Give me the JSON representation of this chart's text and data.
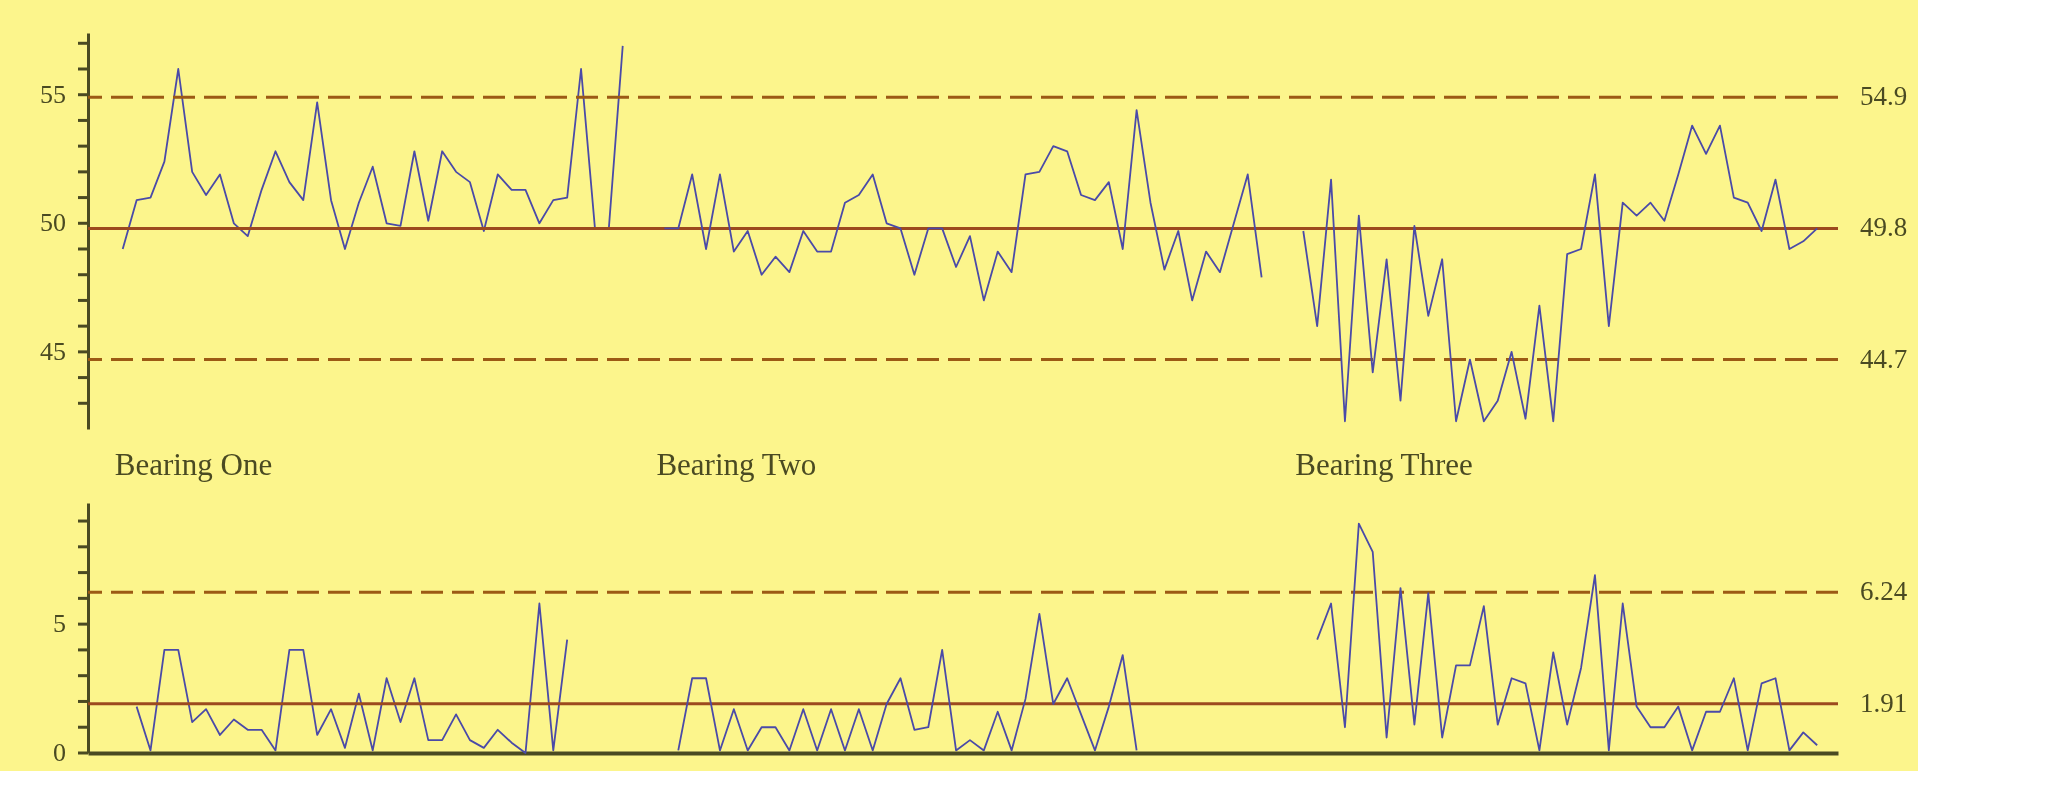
{
  "chart_data": [
    {
      "type": "line",
      "tick_labels": "y",
      "line_style": "solid",
      "categories": [
        null,
        null,
        null,
        null,
        null,
        null,
        null,
        null,
        null,
        null,
        null,
        null,
        null,
        null,
        null,
        null,
        null,
        null,
        null,
        null,
        null,
        null,
        null,
        null,
        null,
        null,
        null,
        null,
        null,
        null,
        null,
        null,
        null,
        null,
        null,
        null,
        null,
        null,
        null,
        null,
        null,
        null,
        null,
        null,
        null,
        null,
        null,
        null,
        null,
        null,
        null,
        null,
        null,
        null,
        null,
        null,
        null,
        null,
        null,
        null,
        null,
        null,
        null,
        null,
        null,
        null,
        null,
        null,
        null,
        null,
        null,
        null,
        null,
        null,
        null,
        null,
        null,
        null,
        null,
        null,
        null,
        null,
        null,
        null,
        null,
        null,
        null,
        null,
        null,
        null,
        null,
        null,
        null,
        null,
        null,
        null,
        null,
        null,
        null,
        null,
        null,
        null,
        null,
        null,
        null,
        null,
        null,
        null,
        null,
        null,
        null,
        null,
        null,
        null,
        null,
        null,
        null,
        null,
        null,
        null,
        null,
        null,
        null,
        null,
        null,
        null
      ],
      "annotations": [
        "Bearing One",
        "Bearing Two",
        "Bearing Three"
      ],
      "ylim": [
        42,
        57.4
      ],
      "yticks": [
        {
          "value": 43,
          "label": null
        },
        {
          "value": 44,
          "label": null
        },
        45,
        {
          "value": 46,
          "label": null
        },
        {
          "value": 47,
          "label": null
        },
        {
          "value": 48,
          "label": null
        },
        {
          "value": 49,
          "label": null
        },
        50,
        {
          "value": 51,
          "label": null
        },
        {
          "value": 52,
          "label": null
        },
        {
          "value": 53,
          "label": null
        },
        {
          "value": 54,
          "label": null
        },
        55,
        {
          "value": 56,
          "label": null
        },
        {
          "value": 57,
          "label": null
        }
      ],
      "ref_lines": [
        {
          "axis": "y",
          "value": 54.9,
          "label": "54.9",
          "color": "#9c5a14",
          "line_style": "dashed"
        },
        {
          "axis": "y",
          "value": 49.8,
          "label": "49.8",
          "color": "#9c4a1e",
          "line_style": "solid"
        },
        {
          "axis": "y",
          "value": 44.7,
          "label": "44.7",
          "color": "#9c5a14",
          "line_style": "dashed"
        }
      ],
      "series": [
        {
          "color": "#4a4aa8",
          "values": [
            null,
            null,
            49.0,
            50.9,
            51.0,
            52.4,
            56.0,
            52.0,
            51.1,
            51.9,
            50.0,
            49.5,
            51.3,
            52.8,
            51.6,
            50.9,
            54.7,
            50.9,
            49.0,
            50.8,
            52.2,
            50.0,
            49.9,
            52.8,
            50.1,
            52.8,
            52.0,
            51.6,
            49.7,
            51.9,
            51.3,
            51.3,
            50.0,
            50.9,
            51.0,
            56.0,
            49.8,
            49.8,
            56.9,
            null,
            null,
            null,
            null,
            null,
            null,
            null,
            null,
            null,
            null,
            null,
            null,
            null,
            null,
            null,
            null,
            null,
            null,
            null,
            null,
            null,
            null,
            null,
            null,
            null,
            null,
            null,
            null,
            null,
            null,
            null,
            null,
            null,
            null,
            null,
            null,
            null,
            null,
            null,
            null,
            null,
            null,
            null,
            null,
            null,
            null,
            null,
            null,
            null,
            null,
            null,
            null,
            null,
            null,
            null,
            null,
            null,
            null,
            null,
            null,
            null,
            null,
            null,
            null,
            null,
            null,
            null,
            null,
            null,
            null,
            null,
            null,
            null,
            null,
            null,
            null,
            null,
            null,
            null,
            null,
            null,
            null,
            null,
            null,
            null,
            null,
            null
          ]
        },
        {
          "color": "#4a4aa8",
          "values": [
            null,
            null,
            null,
            null,
            null,
            null,
            null,
            null,
            null,
            null,
            null,
            null,
            null,
            null,
            null,
            null,
            null,
            null,
            null,
            null,
            null,
            null,
            null,
            null,
            null,
            null,
            null,
            null,
            null,
            null,
            null,
            null,
            null,
            null,
            null,
            null,
            null,
            null,
            null,
            null,
            null,
            49.8,
            49.8,
            51.9,
            49.0,
            51.9,
            48.9,
            49.7,
            48.0,
            48.7,
            48.1,
            49.7,
            48.9,
            48.9,
            50.8,
            51.1,
            51.9,
            50.0,
            49.8,
            48.0,
            49.8,
            49.8,
            48.3,
            49.5,
            47.0,
            48.9,
            48.1,
            51.9,
            52.0,
            53.0,
            52.8,
            51.1,
            50.9,
            51.6,
            49.0,
            54.4,
            50.8,
            48.2,
            49.7,
            47.0,
            48.9,
            48.1,
            50.0,
            51.9,
            47.9,
            null,
            null,
            null,
            null,
            null,
            null,
            null,
            null,
            null,
            null,
            null,
            null,
            null,
            null,
            null,
            null,
            null,
            null,
            null,
            null,
            null,
            null,
            null,
            null,
            null,
            null,
            null,
            null,
            null,
            null,
            null,
            null,
            null,
            null,
            null,
            null,
            null,
            null,
            null,
            null,
            null
          ]
        },
        {
          "color": "#4a4aa8",
          "values": [
            null,
            null,
            null,
            null,
            null,
            null,
            null,
            null,
            null,
            null,
            null,
            null,
            null,
            null,
            null,
            null,
            null,
            null,
            null,
            null,
            null,
            null,
            null,
            null,
            null,
            null,
            null,
            null,
            null,
            null,
            null,
            null,
            null,
            null,
            null,
            null,
            null,
            null,
            null,
            null,
            null,
            null,
            null,
            null,
            null,
            null,
            null,
            null,
            null,
            null,
            null,
            null,
            null,
            null,
            null,
            null,
            null,
            null,
            null,
            null,
            null,
            null,
            null,
            null,
            null,
            null,
            null,
            null,
            null,
            null,
            null,
            null,
            null,
            null,
            null,
            null,
            null,
            null,
            null,
            null,
            null,
            null,
            null,
            null,
            null,
            null,
            null,
            49.7,
            46.0,
            51.7,
            42.3,
            50.3,
            44.2,
            48.6,
            43.1,
            49.9,
            46.4,
            48.6,
            42.3,
            44.7,
            42.3,
            43.1,
            45.0,
            42.4,
            46.8,
            42.3,
            48.8,
            49.0,
            51.9,
            46.0,
            50.8,
            50.3,
            50.8,
            50.1,
            51.9,
            53.8,
            52.7,
            53.8,
            51.0,
            50.8,
            49.7,
            51.7,
            49.0,
            49.3,
            49.8,
            null
          ]
        }
      ]
    },
    {
      "type": "line",
      "tick_labels": "y",
      "line_style": "solid",
      "categories": [
        null,
        null,
        null,
        null,
        null,
        null,
        null,
        null,
        null,
        null,
        null,
        null,
        null,
        null,
        null,
        null,
        null,
        null,
        null,
        null,
        null,
        null,
        null,
        null,
        null,
        null,
        null,
        null,
        null,
        null,
        null,
        null,
        null,
        null,
        null,
        null,
        null,
        null,
        null,
        null,
        null,
        null,
        null,
        null,
        null,
        null,
        null,
        null,
        null,
        null,
        null,
        null,
        null,
        null,
        null,
        null,
        null,
        null,
        null,
        null,
        null,
        null,
        null,
        null,
        null,
        null,
        null,
        null,
        null,
        null,
        null,
        null,
        null,
        null,
        null,
        null,
        null,
        null,
        null,
        null,
        null,
        null,
        null,
        null,
        null,
        null,
        null,
        null,
        null,
        null,
        null,
        null,
        null,
        null,
        null,
        null,
        null,
        null,
        null,
        null,
        null,
        null,
        null,
        null,
        null,
        null,
        null,
        null,
        null,
        null,
        null,
        null,
        null,
        null,
        null,
        null,
        null,
        null,
        null,
        null,
        null,
        null,
        null,
        null,
        null,
        null
      ],
      "ylim": [
        0,
        9.7
      ],
      "yticks": [
        0,
        {
          "value": 1,
          "label": null
        },
        {
          "value": 2,
          "label": null
        },
        {
          "value": 3,
          "label": null
        },
        {
          "value": 4,
          "label": null
        },
        5,
        {
          "value": 6,
          "label": null
        },
        {
          "value": 7,
          "label": null
        },
        {
          "value": 8,
          "label": null
        },
        {
          "value": 9,
          "label": null
        }
      ],
      "ref_lines": [
        {
          "axis": "y",
          "value": 6.24,
          "label": "6.24",
          "color": "#9c5a14",
          "line_style": "dashed"
        },
        {
          "axis": "y",
          "value": 1.91,
          "label": "1.91",
          "color": "#9c4a1e",
          "line_style": "solid"
        }
      ],
      "series": [
        {
          "color": "#4a4aa8",
          "values": [
            null,
            null,
            null,
            1.8,
            0.1,
            4.0,
            4.0,
            1.2,
            1.7,
            0.7,
            1.3,
            0.9,
            0.9,
            0.1,
            4.0,
            4.0,
            0.7,
            1.7,
            0.2,
            2.3,
            0.1,
            2.9,
            1.2,
            2.9,
            0.5,
            0.5,
            1.5,
            0.5,
            0.2,
            0.9,
            0.4,
            0.0,
            5.8,
            0.1,
            4.4,
            null,
            null,
            null,
            null,
            null,
            null,
            null,
            null,
            null,
            null,
            null,
            null,
            null,
            null,
            null,
            null,
            null,
            null,
            null,
            null,
            null,
            null,
            null,
            null,
            null,
            null,
            null,
            null,
            null,
            null,
            null,
            null,
            null,
            null,
            null,
            null,
            null,
            null,
            null,
            null,
            null,
            null,
            null,
            null,
            null,
            null,
            null,
            null,
            null,
            null,
            null,
            null,
            null,
            null,
            null,
            null,
            null,
            null,
            null,
            null,
            null,
            null,
            null,
            null,
            null,
            null,
            null,
            null,
            null,
            null,
            null,
            null,
            null,
            null,
            null,
            null,
            null,
            null,
            null,
            null,
            null,
            null,
            null,
            null,
            null,
            null,
            null,
            null,
            null,
            null,
            null
          ]
        },
        {
          "color": "#4a4aa8",
          "values": [
            null,
            null,
            null,
            null,
            null,
            null,
            null,
            null,
            null,
            null,
            null,
            null,
            null,
            null,
            null,
            null,
            null,
            null,
            null,
            null,
            null,
            null,
            null,
            null,
            null,
            null,
            null,
            null,
            null,
            null,
            null,
            null,
            null,
            null,
            null,
            null,
            null,
            null,
            null,
            null,
            null,
            null,
            0.1,
            2.9,
            2.9,
            0.1,
            1.7,
            0.1,
            1.0,
            1.0,
            0.1,
            1.7,
            0.1,
            1.7,
            0.1,
            1.7,
            0.1,
            1.9,
            2.9,
            0.9,
            1.0,
            4.0,
            0.1,
            0.5,
            0.1,
            1.6,
            0.1,
            2.1,
            5.4,
            1.9,
            2.9,
            1.5,
            0.1,
            1.8,
            3.8,
            0.1,
            null,
            null,
            null,
            null,
            null,
            null,
            null,
            null,
            null,
            null,
            null,
            null,
            null,
            null,
            null,
            null,
            null,
            null,
            null,
            null,
            null,
            null,
            null,
            null,
            null,
            null,
            null,
            null,
            null,
            null,
            null,
            null,
            null,
            null,
            null,
            null,
            null,
            null,
            null,
            null,
            null,
            null,
            null,
            null,
            null,
            null,
            null,
            null,
            null,
            null
          ]
        },
        {
          "color": "#4a4aa8",
          "values": [
            null,
            null,
            null,
            null,
            null,
            null,
            null,
            null,
            null,
            null,
            null,
            null,
            null,
            null,
            null,
            null,
            null,
            null,
            null,
            null,
            null,
            null,
            null,
            null,
            null,
            null,
            null,
            null,
            null,
            null,
            null,
            null,
            null,
            null,
            null,
            null,
            null,
            null,
            null,
            null,
            null,
            null,
            null,
            null,
            null,
            null,
            null,
            null,
            null,
            null,
            null,
            null,
            null,
            null,
            null,
            null,
            null,
            null,
            null,
            null,
            null,
            null,
            null,
            null,
            null,
            null,
            null,
            null,
            null,
            null,
            null,
            null,
            null,
            null,
            null,
            null,
            null,
            null,
            null,
            null,
            null,
            null,
            null,
            null,
            null,
            null,
            null,
            null,
            4.4,
            5.8,
            1.0,
            8.9,
            7.8,
            0.6,
            6.4,
            1.1,
            6.2,
            0.6,
            3.4,
            3.4,
            5.7,
            1.1,
            2.9,
            2.7,
            0.1,
            3.9,
            1.1,
            3.3,
            6.9,
            0.1,
            5.8,
            1.8,
            1.0,
            1.0,
            1.8,
            0.1,
            1.6,
            1.6,
            2.9,
            0.1,
            2.7,
            2.9,
            0.1,
            0.8,
            0.3,
            null
          ]
        }
      ]
    }
  ]
}
